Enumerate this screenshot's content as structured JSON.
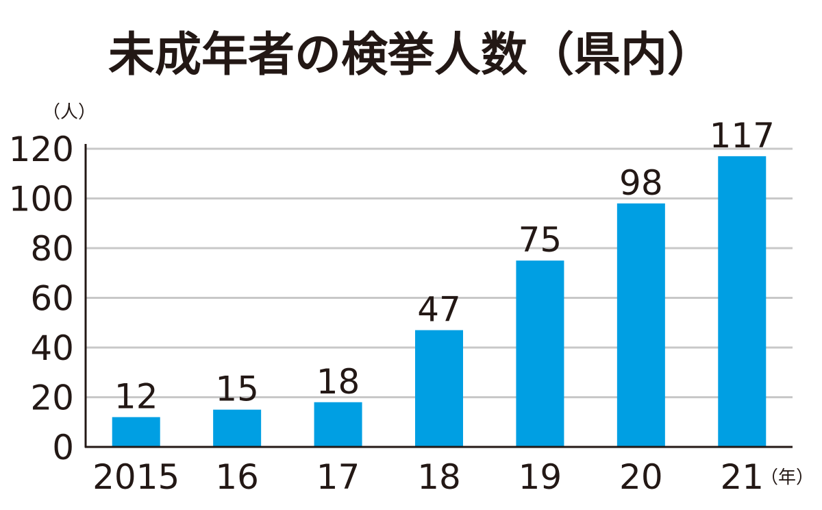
{
  "chart_data": {
    "type": "bar",
    "title": "未成年者の検挙人数（県内）",
    "y_unit": "（人）",
    "x_unit": "（年）",
    "categories": [
      "2015",
      "16",
      "17",
      "18",
      "19",
      "20",
      "21"
    ],
    "values": [
      12,
      15,
      18,
      47,
      75,
      98,
      117
    ],
    "ylim": [
      0,
      120
    ],
    "yticks": [
      0,
      20,
      40,
      60,
      80,
      100,
      120
    ],
    "grid": true,
    "bar_color": "#009fe3",
    "grid_color": "#c8c8c8"
  }
}
